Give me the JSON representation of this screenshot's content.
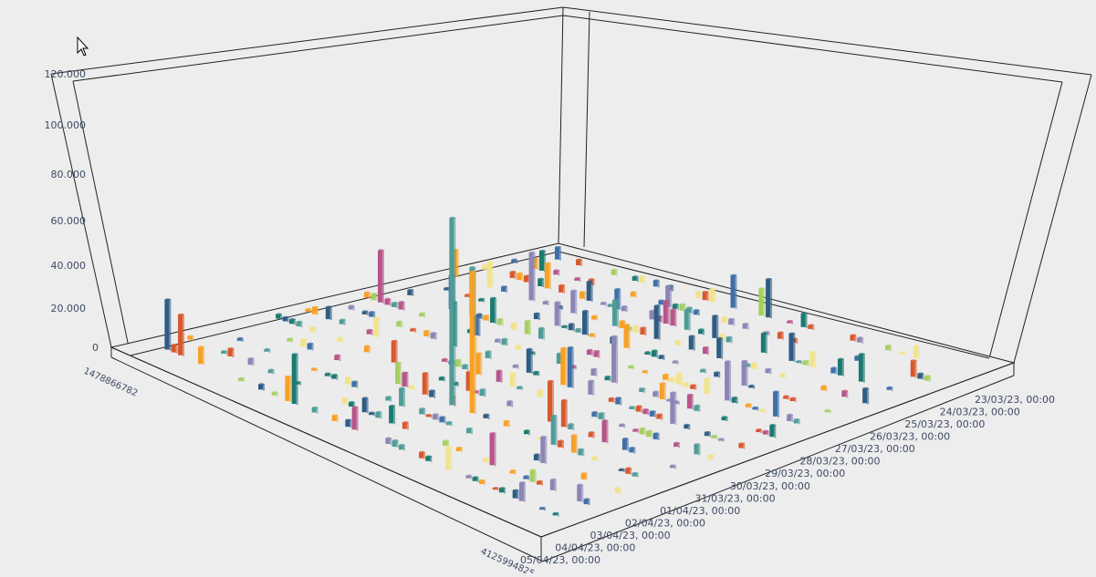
{
  "chart_data": {
    "type": "bar3d",
    "title": "",
    "zlabel": "",
    "zlim": [
      0,
      120000
    ],
    "z_ticks": [
      "0",
      "20.000",
      "40.000",
      "60.000",
      "80.000",
      "100.000",
      "120.000"
    ],
    "date_axis_labels": [
      "23/03/23, 00:00",
      "24/03/23, 00:00",
      "25/03/23, 00:00",
      "26/03/23, 00:00",
      "27/03/23, 00:00",
      "28/03/23, 00:00",
      "29/03/23, 00:00",
      "30/03/23, 00:00",
      "31/03/23, 00:00",
      "01/04/23, 00:00",
      "02/04/23, 00:00",
      "03/04/23, 00:00",
      "04/04/23, 00:00",
      "05/04/23, 00:00"
    ],
    "series_axis_first_label": "1478866782",
    "series_axis_last_label": "4125994825",
    "series_axis_label_count": 60,
    "highlighted_bars": [
      {
        "date": "26/03/23, 00:00",
        "series_index": 30,
        "value": 94000,
        "color": "#4f9b97"
      },
      {
        "date": "26/03/23, 00:00",
        "series_index": 33,
        "value": 72000,
        "color": "#f7a125"
      },
      {
        "date": "23/03/23, 00:00",
        "series_index": 1,
        "value": 22000,
        "color": "#2e5c83"
      },
      {
        "date": "23/03/23, 00:00",
        "series_index": 3,
        "value": 18000,
        "color": "#d8582e"
      },
      {
        "date": "27/03/23, 00:00",
        "series_index": 42,
        "value": 14000,
        "color": "#d8582e"
      }
    ],
    "palette": [
      "#2e5c83",
      "#4f9b97",
      "#1a7a72",
      "#d8582e",
      "#f7a125",
      "#f1e38a",
      "#a6cf62",
      "#8b86b5",
      "#b7548a",
      "#3f6fa6"
    ],
    "grid": false,
    "legend": "none"
  }
}
